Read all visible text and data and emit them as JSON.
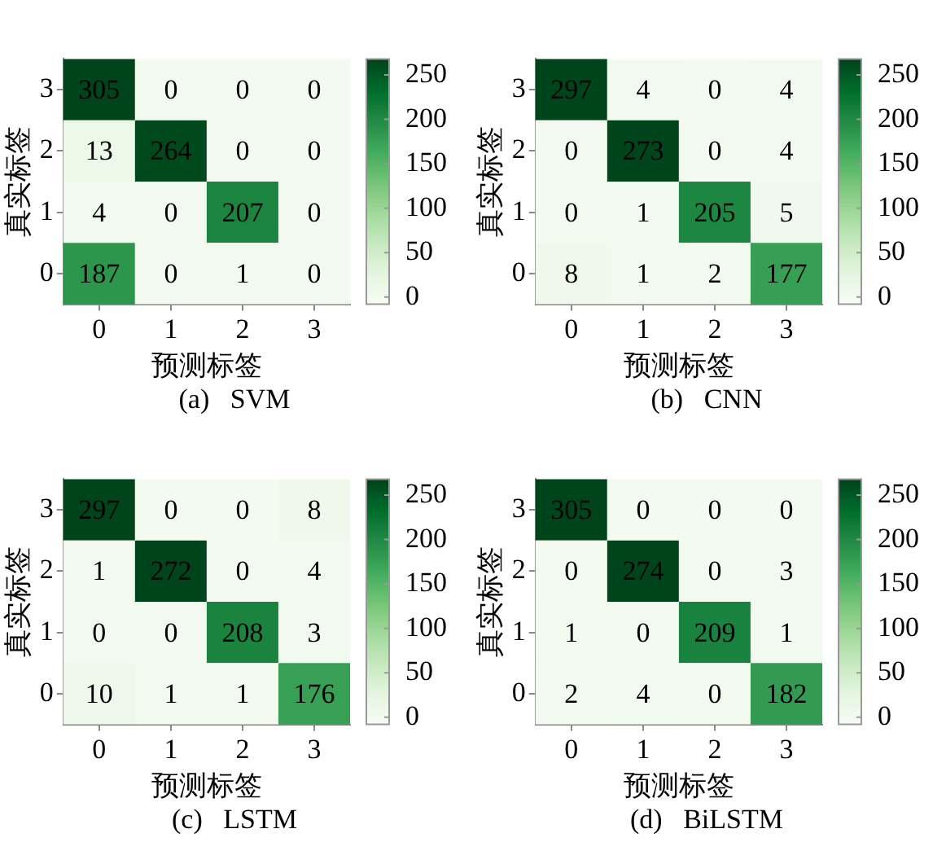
{
  "chart_data": [
    {
      "type": "heatmap",
      "title": "(a)   SVM",
      "xlabel": "预测标签",
      "ylabel": "真实标签",
      "categories": [
        "0",
        "1",
        "2",
        "3"
      ],
      "y_categories": [
        "3",
        "2",
        "1",
        "0"
      ],
      "cells": [
        [
          305,
          0,
          0,
          0
        ],
        [
          13,
          264,
          0,
          0
        ],
        [
          4,
          0,
          207,
          0
        ],
        [
          187,
          0,
          1,
          0
        ]
      ],
      "data_labels": true,
      "clim": [
        -8,
        268
      ],
      "cticks": [
        0,
        50,
        100,
        150,
        200,
        250
      ]
    },
    {
      "type": "heatmap",
      "title": "(b)   CNN",
      "xlabel": "预测标签",
      "ylabel": "真实标签",
      "categories": [
        "0",
        "1",
        "2",
        "3"
      ],
      "y_categories": [
        "3",
        "2",
        "1",
        "0"
      ],
      "cells": [
        [
          297,
          4,
          0,
          4
        ],
        [
          0,
          273,
          0,
          4
        ],
        [
          0,
          1,
          205,
          5
        ],
        [
          8,
          1,
          2,
          177
        ]
      ],
      "data_labels": true,
      "clim": [
        -8,
        268
      ],
      "cticks": [
        0,
        50,
        100,
        150,
        200,
        250
      ]
    },
    {
      "type": "heatmap",
      "title": "(c)   LSTM",
      "xlabel": "预测标签",
      "ylabel": "真实标签",
      "categories": [
        "0",
        "1",
        "2",
        "3"
      ],
      "y_categories": [
        "3",
        "2",
        "1",
        "0"
      ],
      "cells": [
        [
          297,
          0,
          0,
          8
        ],
        [
          1,
          272,
          0,
          4
        ],
        [
          0,
          0,
          208,
          3
        ],
        [
          10,
          1,
          1,
          176
        ]
      ],
      "data_labels": true,
      "clim": [
        -8,
        268
      ],
      "cticks": [
        0,
        50,
        100,
        150,
        200,
        250
      ]
    },
    {
      "type": "heatmap",
      "title": "(d)   BiLSTM",
      "xlabel": "预测标签",
      "ylabel": "真实标签",
      "categories": [
        "0",
        "1",
        "2",
        "3"
      ],
      "y_categories": [
        "3",
        "2",
        "1",
        "0"
      ],
      "cells": [
        [
          305,
          0,
          0,
          0
        ],
        [
          0,
          274,
          0,
          3
        ],
        [
          1,
          0,
          209,
          1
        ],
        [
          2,
          4,
          0,
          182
        ]
      ],
      "data_labels": true,
      "clim": [
        -8,
        268
      ],
      "cticks": [
        0,
        50,
        100,
        150,
        200,
        250
      ]
    }
  ]
}
